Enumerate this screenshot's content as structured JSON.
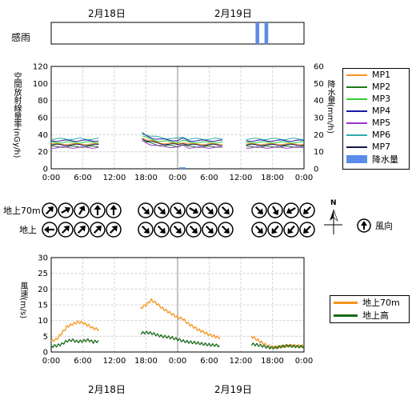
{
  "dates": {
    "top": [
      "2月18日",
      "2月19日"
    ],
    "bottom": [
      "2月18日",
      "2月19日"
    ]
  },
  "rain_sense": {
    "label": "感雨",
    "events_hours": [
      [
        38.8,
        39.5
      ],
      [
        40.5,
        41.2
      ]
    ]
  },
  "time_ticks": [
    "0:00",
    "6:00",
    "12:00",
    "18:00",
    "0:00",
    "6:00",
    "12:00",
    "18:00",
    "0:00"
  ],
  "chart_data": [
    {
      "type": "line",
      "id": "dose",
      "ylabel": "空間放射線量率(nGy/h)",
      "ylabel2": "降水量(mm/h)",
      "ylim": [
        0,
        120
      ],
      "y2lim": [
        0,
        60
      ],
      "yticks": [
        "0",
        "20",
        "40",
        "60",
        "80",
        "100",
        "120"
      ],
      "y2ticks": [
        "0",
        "10",
        "20",
        "30",
        "40",
        "50",
        "60"
      ],
      "xlim": [
        0,
        48
      ],
      "x_unit": "hours since 2月18日 0:00",
      "legend_position": "right",
      "gaps": [
        [
          9.2,
          17.2
        ],
        [
          33.5,
          37.0
        ]
      ],
      "series": [
        {
          "name": "MP1",
          "color": "#f7941d",
          "base": 29
        },
        {
          "name": "MP2",
          "color": "#1a7a1a",
          "base": 26
        },
        {
          "name": "MP3",
          "color": "#33cc33",
          "base": 31
        },
        {
          "name": "MP4",
          "color": "#1a1aa6",
          "base": 33
        },
        {
          "name": "MP5",
          "color": "#9933cc",
          "base": 25
        },
        {
          "name": "MP6",
          "color": "#33aaaa",
          "base": 35
        },
        {
          "name": "MP7",
          "color": "#141450",
          "base": 28
        }
      ],
      "precip": {
        "name": "降水量",
        "color": "#5b8de8",
        "events": [
          [
            24.3,
            25.5,
            0.4
          ]
        ]
      }
    },
    {
      "type": "line",
      "id": "wind",
      "ylabel": "風速(m/s)",
      "ylim": [
        0,
        30
      ],
      "yticks": [
        "0",
        "5",
        "10",
        "15",
        "20",
        "25",
        "30"
      ],
      "xlim": [
        0,
        48
      ],
      "legend_position": "right",
      "series": [
        {
          "name": "地上70m",
          "color": "#f7941d",
          "segments": [
            [
              [
                0,
                3.5
              ],
              [
                1,
                4
              ],
              [
                2,
                6
              ],
              [
                3,
                8
              ],
              [
                4,
                8.8
              ],
              [
                5,
                9.5
              ],
              [
                6,
                9.3
              ],
              [
                7,
                8.5
              ],
              [
                8,
                7.5
              ],
              [
                9,
                7.2
              ]
            ],
            [
              [
                17,
                14
              ],
              [
                18,
                15
              ],
              [
                19,
                16.5
              ],
              [
                20,
                15.5
              ],
              [
                21,
                14
              ],
              [
                22,
                13
              ],
              [
                23,
                12
              ],
              [
                24,
                11
              ],
              [
                25,
                10.5
              ],
              [
                26,
                9
              ],
              [
                27,
                8
              ],
              [
                28,
                7
              ],
              [
                29,
                6.3
              ],
              [
                30,
                5.5
              ],
              [
                31,
                5
              ],
              [
                32,
                4.5
              ]
            ],
            [
              [
                38,
                5
              ],
              [
                39,
                4
              ],
              [
                40,
                3
              ],
              [
                41,
                2
              ],
              [
                42,
                1.6
              ],
              [
                43,
                1.5
              ],
              [
                44,
                1.8
              ],
              [
                45,
                2
              ],
              [
                46,
                2
              ],
              [
                47,
                1.9
              ],
              [
                48,
                1.8
              ]
            ]
          ]
        },
        {
          "name": "地上高",
          "color": "#1a6a1a",
          "segments": [
            [
              [
                0,
                1.8
              ],
              [
                1,
                2
              ],
              [
                2,
                2.5
              ],
              [
                3,
                3.5
              ],
              [
                4,
                3.8
              ],
              [
                5,
                3.3
              ],
              [
                6,
                3.5
              ],
              [
                7,
                3.8
              ],
              [
                8,
                3.2
              ],
              [
                9,
                3.5
              ]
            ],
            [
              [
                17,
                6
              ],
              [
                18,
                6.2
              ],
              [
                19,
                6
              ],
              [
                20,
                5.5
              ],
              [
                21,
                5
              ],
              [
                22,
                4.8
              ],
              [
                23,
                4.5
              ],
              [
                24,
                4
              ],
              [
                25,
                3.5
              ],
              [
                26,
                3.2
              ],
              [
                27,
                3
              ],
              [
                28,
                2.8
              ],
              [
                29,
                2.5
              ],
              [
                30,
                2.3
              ],
              [
                31,
                2.2
              ],
              [
                32,
                2
              ]
            ],
            [
              [
                38,
                2.5
              ],
              [
                39,
                2.3
              ],
              [
                40,
                2
              ],
              [
                41,
                1.5
              ],
              [
                42,
                1.3
              ],
              [
                43,
                1.5
              ],
              [
                44,
                1.8
              ],
              [
                45,
                2
              ],
              [
                46,
                1.8
              ],
              [
                47,
                1.7
              ],
              [
                48,
                1.8
              ]
            ]
          ]
        }
      ]
    }
  ],
  "wind_direction": {
    "north_label": "N",
    "legend_label": "風向",
    "rows": [
      {
        "label": "地上70m",
        "groups": [
          [
            45,
            60,
            30,
            0,
            0
          ],
          [
            135,
            135,
            135,
            120,
            135,
            135
          ],
          [
            135,
            150,
            240,
            225
          ]
        ]
      },
      {
        "label": "地上",
        "groups": [
          [
            270,
            45,
            45,
            45,
            45
          ],
          [
            135,
            135,
            135,
            135,
            135,
            135
          ],
          [
            135,
            220,
            220,
            225
          ]
        ]
      }
    ]
  }
}
